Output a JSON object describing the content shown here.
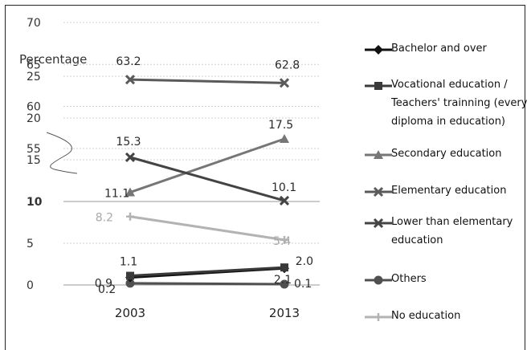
{
  "chart_data": {
    "type": "line",
    "ylabel": "Percentage",
    "x": [
      "2003",
      "2013"
    ],
    "yticks": [
      "0",
      "5",
      "10",
      "15",
      "20",
      "25",
      "55",
      "60",
      "65",
      "70"
    ],
    "axis_break": "between 25 and 55",
    "series": [
      {
        "name": "Bachelor and over",
        "values": [
          0.9,
          2.0
        ],
        "labels": [
          "0.9",
          "2.0"
        ],
        "color": "#111111",
        "marker": "diamond"
      },
      {
        "name": "Vocational education / Teachers' trainning (every diploma in education)",
        "values": [
          1.1,
          2.1
        ],
        "labels": [
          "1.1",
          "2.1"
        ],
        "color": "#3a3a3a",
        "marker": "square"
      },
      {
        "name": "Secondary education",
        "values": [
          11.1,
          17.5
        ],
        "labels": [
          "11.1",
          "17.5"
        ],
        "color": "#767676",
        "marker": "triangle"
      },
      {
        "name": "Elementary education",
        "values": [
          63.2,
          62.8
        ],
        "labels": [
          "63.2",
          "62.8"
        ],
        "color": "#5a5a5a",
        "marker": "x"
      },
      {
        "name": "Lower than elementary education",
        "values": [
          15.3,
          10.1
        ],
        "labels": [
          "15.3",
          "10.1"
        ],
        "color": "#444444",
        "marker": "x"
      },
      {
        "name": "Others",
        "values": [
          0.2,
          0.1
        ],
        "labels": [
          "0.2",
          "0.1"
        ],
        "color": "#505050",
        "marker": "circle"
      },
      {
        "name": "No education",
        "values": [
          8.2,
          5.4
        ],
        "labels": [
          "8.2",
          "5.4"
        ],
        "color": "#b3b3b3",
        "marker": "plus"
      }
    ],
    "grid": true,
    "legend_position": "right"
  }
}
